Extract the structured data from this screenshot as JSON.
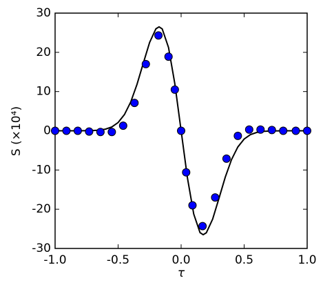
{
  "chart_data": {
    "type": "scatter",
    "xlabel": "τ",
    "ylabel": "S (×10⁴)",
    "xlim": [
      -1.0,
      1.0
    ],
    "ylim": [
      -30,
      30
    ],
    "xticks": [
      {
        "value": -1.0,
        "label": "-1.0"
      },
      {
        "value": -0.5,
        "label": "-0.5"
      },
      {
        "value": 0.0,
        "label": "0.0"
      },
      {
        "value": 0.5,
        "label": "0.5"
      },
      {
        "value": 1.0,
        "label": "1.0"
      }
    ],
    "yticks": [
      -30,
      -20,
      -10,
      0,
      10,
      20,
      30
    ],
    "grid": false,
    "series": [
      {
        "type": "line",
        "color": "#000000",
        "x": [
          -1.0,
          -0.9,
          -0.8,
          -0.7,
          -0.65,
          -0.6,
          -0.55,
          -0.5,
          -0.45,
          -0.4,
          -0.35,
          -0.3,
          -0.25,
          -0.2,
          -0.175,
          -0.15,
          -0.1,
          -0.05,
          0.0,
          0.05,
          0.1,
          0.15,
          0.175,
          0.2,
          0.25,
          0.3,
          0.35,
          0.4,
          0.45,
          0.5,
          0.55,
          0.6,
          0.65,
          0.7,
          0.8,
          0.9,
          1.0
        ],
        "values": [
          0,
          0,
          0,
          0.06,
          0.16,
          0.42,
          0.98,
          2.11,
          4.13,
          7.34,
          11.84,
          17.26,
          22.53,
          26.0,
          26.5,
          25.97,
          21.23,
          12.0,
          0,
          -12.0,
          -21.23,
          -25.97,
          -26.5,
          -26.0,
          -22.53,
          -17.26,
          -11.84,
          -7.34,
          -4.13,
          -2.11,
          -0.98,
          -0.42,
          -0.16,
          -0.06,
          0,
          0,
          0
        ]
      },
      {
        "type": "scatter",
        "color": "#0000ff",
        "x": [
          -1.0,
          -0.91,
          -0.82,
          -0.73,
          -0.64,
          -0.55,
          -0.46,
          -0.37,
          -0.28,
          -0.18,
          -0.1,
          -0.05,
          0.0,
          0.04,
          0.09,
          0.17,
          0.27,
          0.36,
          0.45,
          0.54,
          0.63,
          0.72,
          0.81,
          0.91,
          1.0
        ],
        "values": [
          0,
          0,
          0,
          -0.2,
          -0.3,
          -0.3,
          1.3,
          7.1,
          17,
          24.3,
          18.9,
          10.5,
          0,
          -10.6,
          -19,
          -24.3,
          -17,
          -7.1,
          -1.3,
          0.3,
          0.3,
          0.2,
          0,
          0,
          0
        ]
      }
    ]
  }
}
